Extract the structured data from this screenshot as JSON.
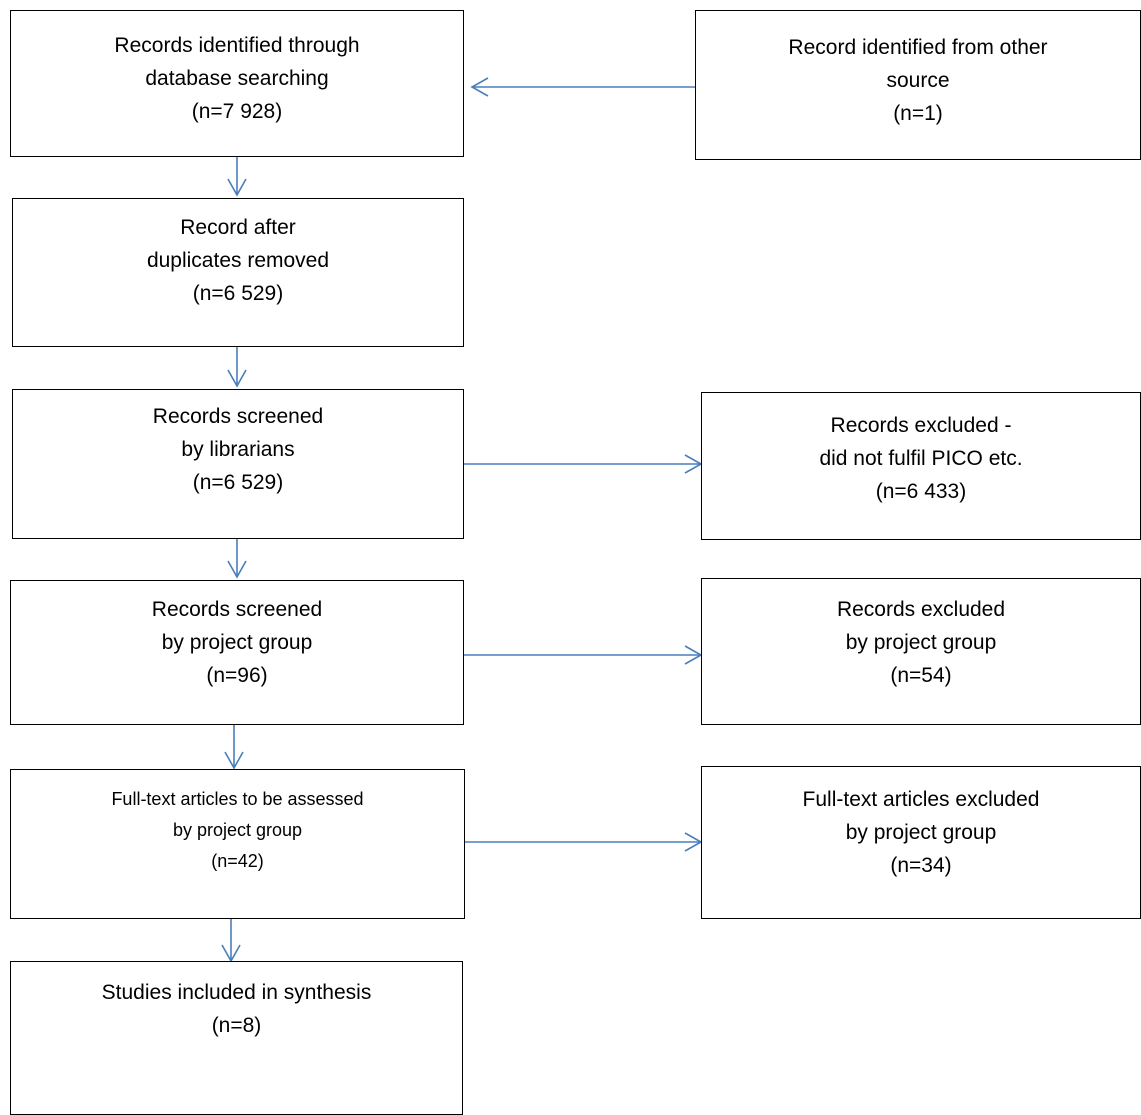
{
  "boxes": {
    "identified_db": {
      "line1": "Records identified through",
      "line2": "database searching",
      "count": "(n=7 928)"
    },
    "identified_other": {
      "line1": "Record identified from other",
      "line2": "source",
      "count": "(n=1)"
    },
    "after_duplicates": {
      "line1": "Record after",
      "line2": "duplicates removed",
      "count": "(n=6 529)"
    },
    "screened_librarians": {
      "line1": "Records screened",
      "line2": "by librarians",
      "count": "(n=6 529)"
    },
    "excluded_pico": {
      "line1": "Records excluded -",
      "line2": "did not fulfil PICO etc.",
      "count": "(n=6 433)"
    },
    "screened_project": {
      "line1": "Records screened",
      "line2": "by project group",
      "count": "(n=96)"
    },
    "excluded_project": {
      "line1": "Records excluded",
      "line2": "by project group",
      "count": "(n=54)"
    },
    "fulltext_assessed": {
      "line1": "Full-text articles to be assessed",
      "line2": "by project group",
      "count": "(n=42)"
    },
    "fulltext_excluded": {
      "line1": "Full-text articles excluded",
      "line2": "by project group",
      "count": "(n=34)"
    },
    "included": {
      "line1": "Studies included in synthesis",
      "count": "(n=8)"
    }
  },
  "colors": {
    "arrow": "#4a7ebb",
    "border": "#000000"
  }
}
